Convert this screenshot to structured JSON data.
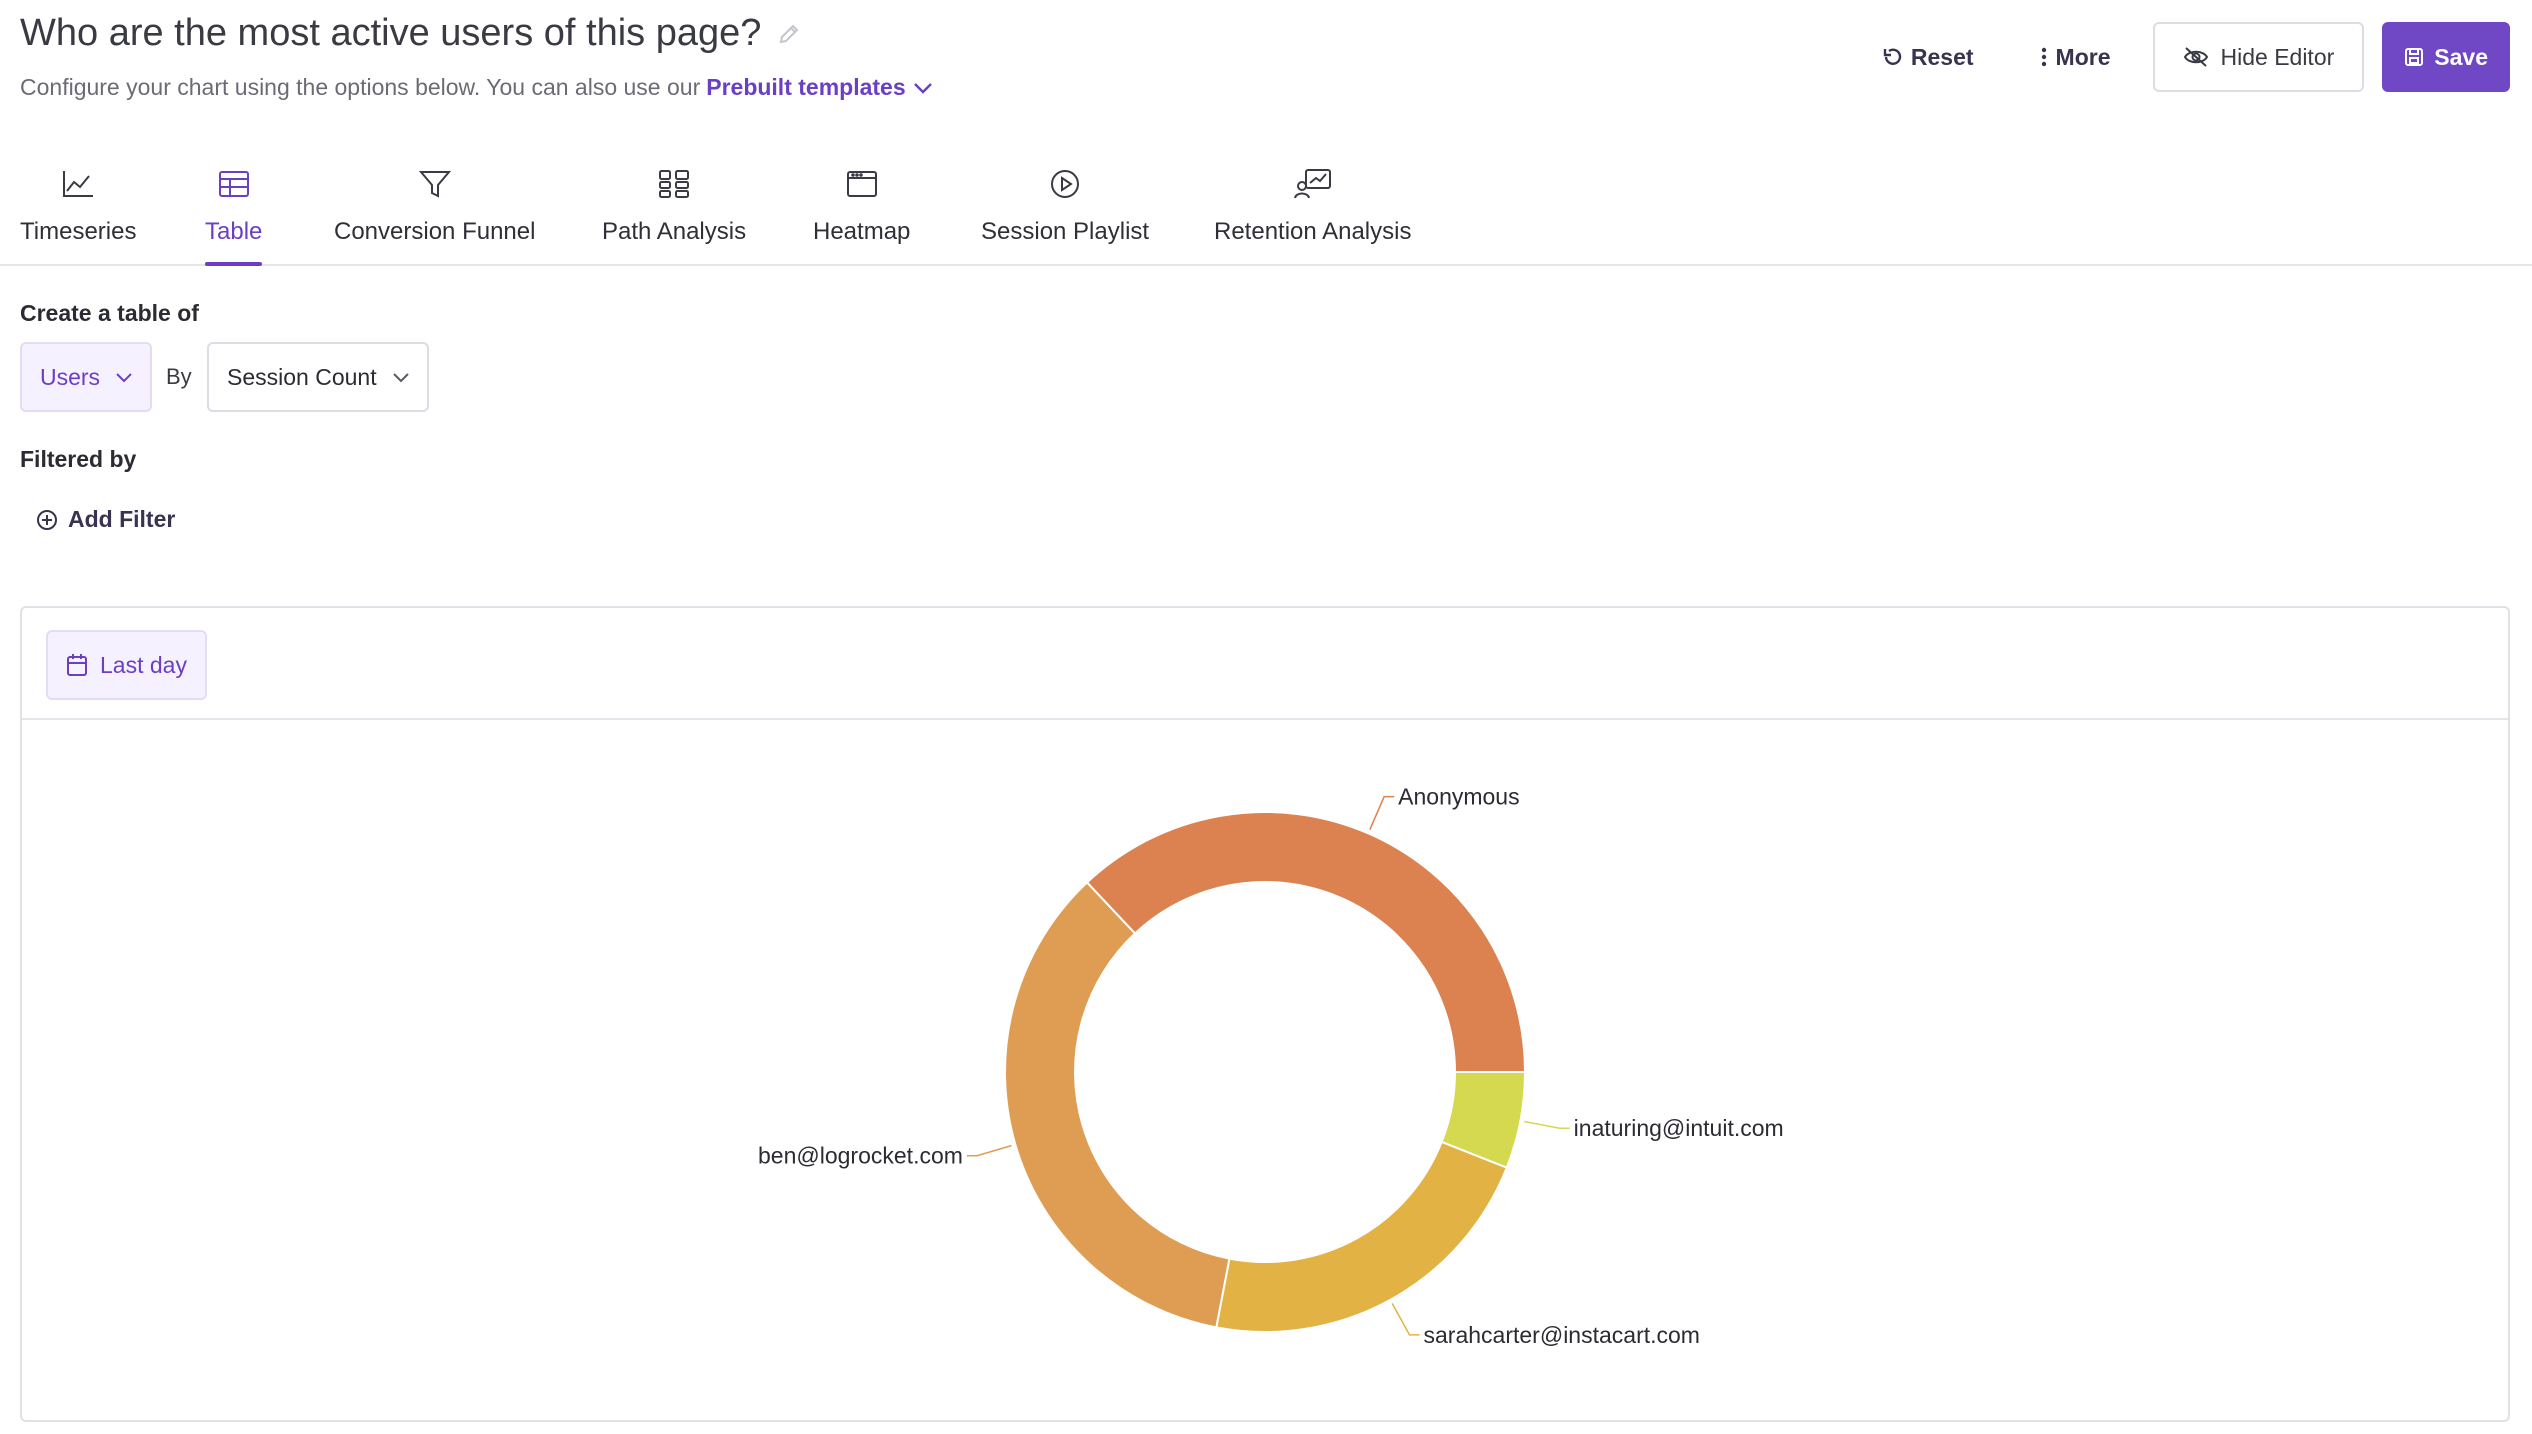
{
  "header": {
    "title": "Who are the most active users of this page?",
    "subtitle_prefix": "Configure your chart using the options below. You can also use our",
    "templates_link": "Prebuilt templates",
    "actions": {
      "reset": "Reset",
      "more": "More",
      "hide_editor": "Hide Editor",
      "save": "Save"
    }
  },
  "tabs": [
    {
      "label": "Timeseries",
      "icon": "line-chart-icon"
    },
    {
      "label": "Table",
      "icon": "table-icon",
      "active": true
    },
    {
      "label": "Conversion Funnel",
      "icon": "funnel-icon"
    },
    {
      "label": "Path Analysis",
      "icon": "path-analysis-icon"
    },
    {
      "label": "Heatmap",
      "icon": "heatmap-icon"
    },
    {
      "label": "Session Playlist",
      "icon": "play-circle-icon"
    },
    {
      "label": "Retention Analysis",
      "icon": "retention-icon"
    }
  ],
  "config": {
    "create_label": "Create a table of",
    "entity_select": "Users",
    "by_label": "By",
    "metric_select": "Session Count",
    "filtered_label": "Filtered by",
    "add_filter": "Add Filter"
  },
  "chart_toolbar": {
    "date_range": "Last day"
  },
  "colors": {
    "accent": "#6a3fc4",
    "primary_button": "#7048c5"
  },
  "chart_data": {
    "type": "pie",
    "variant": "donut",
    "slices": [
      {
        "label": "Anonymous",
        "value": 37,
        "color": "#dc8250"
      },
      {
        "label": "inaturing@intuit.com",
        "value": 6,
        "color": "#d5d94f"
      },
      {
        "label": "sarahcarter@instacart.com",
        "value": 22,
        "color": "#e2b344"
      },
      {
        "label": "ben@logrocket.com",
        "value": 35,
        "color": "#df9d54"
      }
    ]
  }
}
